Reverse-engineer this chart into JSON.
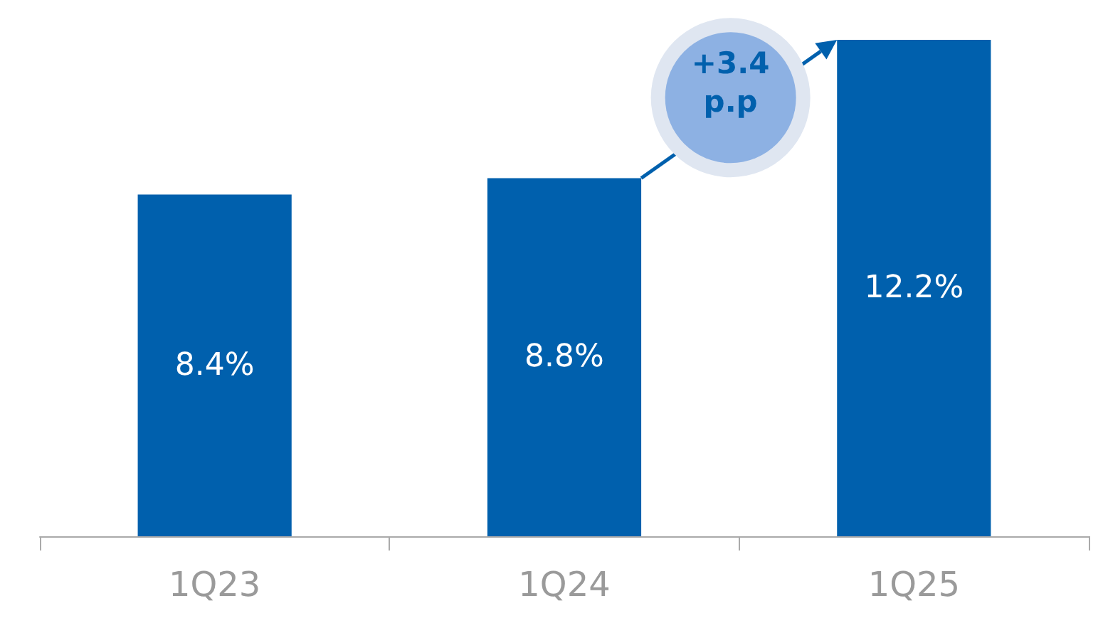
{
  "chart_data": {
    "type": "bar",
    "categories": [
      "1Q23",
      "1Q24",
      "1Q25"
    ],
    "values": [
      8.4,
      8.8,
      12.2
    ],
    "value_labels": [
      "8.4%",
      "8.8%",
      "12.2%"
    ],
    "color": "#0060ad",
    "annotations": [
      "+3.4 p.p"
    ]
  }
}
